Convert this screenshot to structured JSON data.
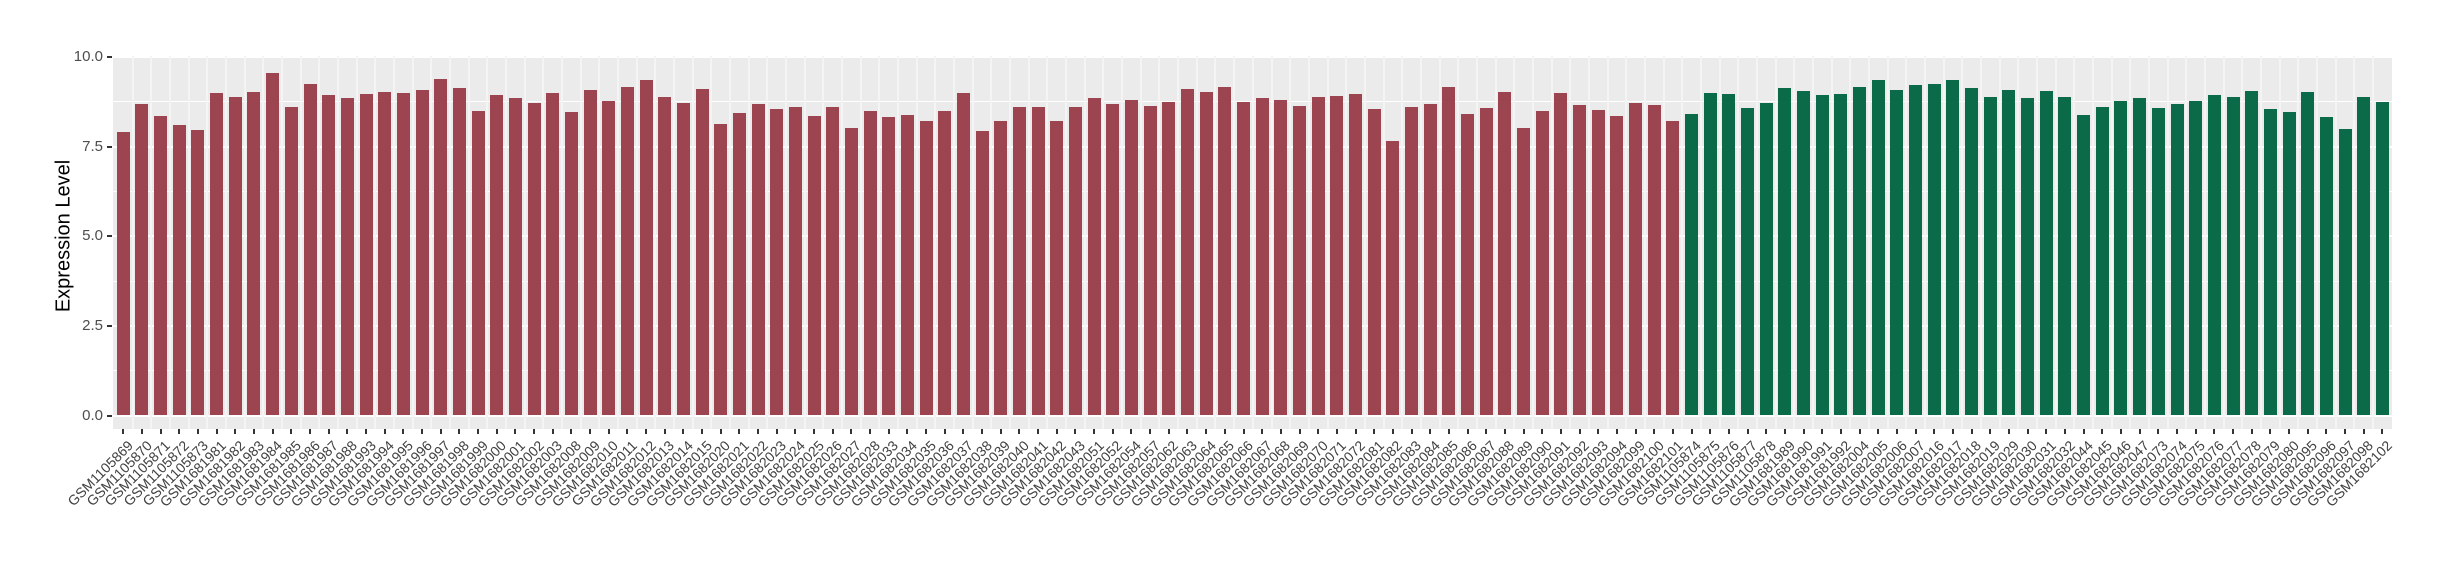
{
  "chart_data": {
    "type": "bar",
    "title": "",
    "xlabel": "",
    "ylabel": "Expression Level",
    "ylim": [
      0,
      10
    ],
    "grid": true,
    "legend": "none",
    "panel_background": "#EBEBEB",
    "gridline_color": "#FFFFFF",
    "y_ticks": [
      {
        "value": 0,
        "label": "0.0"
      },
      {
        "value": 2.5,
        "label": "2.5"
      },
      {
        "value": 5,
        "label": "5.0"
      },
      {
        "value": 7.5,
        "label": "7.5"
      },
      {
        "value": 10,
        "label": "10.0"
      }
    ],
    "series": [
      {
        "name": "group-1-maroon",
        "color": "#9C4450",
        "samples": [
          {
            "label": "GSM1105869",
            "value": 7.92
          },
          {
            "label": "GSM1105870",
            "value": 8.69
          },
          {
            "label": "GSM1105871",
            "value": 8.36
          },
          {
            "label": "GSM1105872",
            "value": 8.11
          },
          {
            "label": "GSM1105873",
            "value": 7.97
          },
          {
            "label": "GSM1681981",
            "value": 8.99
          },
          {
            "label": "GSM1681982",
            "value": 8.89
          },
          {
            "label": "GSM1681983",
            "value": 9.04
          },
          {
            "label": "GSM1681984",
            "value": 9.55
          },
          {
            "label": "GSM1681985",
            "value": 8.6
          },
          {
            "label": "GSM1681986",
            "value": 9.24
          },
          {
            "label": "GSM1681987",
            "value": 8.95
          },
          {
            "label": "GSM1681988",
            "value": 8.85
          },
          {
            "label": "GSM1681993",
            "value": 8.98
          },
          {
            "label": "GSM1681994",
            "value": 9.04
          },
          {
            "label": "GSM1681995",
            "value": 9.01
          },
          {
            "label": "GSM1681996",
            "value": 9.08
          },
          {
            "label": "GSM1681997",
            "value": 9.38
          },
          {
            "label": "GSM1681998",
            "value": 9.15
          },
          {
            "label": "GSM1681999",
            "value": 8.5
          },
          {
            "label": "GSM1682000",
            "value": 8.94
          },
          {
            "label": "GSM1682001",
            "value": 8.85
          },
          {
            "label": "GSM1682002",
            "value": 8.71
          },
          {
            "label": "GSM1682003",
            "value": 9.01
          },
          {
            "label": "GSM1682008",
            "value": 8.48
          },
          {
            "label": "GSM1682009",
            "value": 9.08
          },
          {
            "label": "GSM1682010",
            "value": 8.79
          },
          {
            "label": "GSM1682011",
            "value": 9.16
          },
          {
            "label": "GSM1682012",
            "value": 9.36
          },
          {
            "label": "GSM1682013",
            "value": 8.9
          },
          {
            "label": "GSM1682014",
            "value": 8.71
          },
          {
            "label": "GSM1682015",
            "value": 9.11
          },
          {
            "label": "GSM1682020",
            "value": 8.13
          },
          {
            "label": "GSM1682021",
            "value": 8.45
          },
          {
            "label": "GSM1682022",
            "value": 8.69
          },
          {
            "label": "GSM1682023",
            "value": 8.55
          },
          {
            "label": "GSM1682024",
            "value": 8.62
          },
          {
            "label": "GSM1682025",
            "value": 8.36
          },
          {
            "label": "GSM1682026",
            "value": 8.6
          },
          {
            "label": "GSM1682027",
            "value": 8.03
          },
          {
            "label": "GSM1682028",
            "value": 8.5
          },
          {
            "label": "GSM1682033",
            "value": 8.32
          },
          {
            "label": "GSM1682034",
            "value": 8.39
          },
          {
            "label": "GSM1682035",
            "value": 8.22
          },
          {
            "label": "GSM1682036",
            "value": 8.51
          },
          {
            "label": "GSM1682037",
            "value": 9.01
          },
          {
            "label": "GSM1682038",
            "value": 7.95
          },
          {
            "label": "GSM1682039",
            "value": 8.23
          },
          {
            "label": "GSM1682040",
            "value": 8.61
          },
          {
            "label": "GSM1682041",
            "value": 8.6
          },
          {
            "label": "GSM1682042",
            "value": 8.22
          },
          {
            "label": "GSM1682043",
            "value": 8.61
          },
          {
            "label": "GSM1682051",
            "value": 8.86
          },
          {
            "label": "GSM1682052",
            "value": 8.7
          },
          {
            "label": "GSM1682054",
            "value": 8.81
          },
          {
            "label": "GSM1682057",
            "value": 8.63
          },
          {
            "label": "GSM1682062",
            "value": 8.74
          },
          {
            "label": "GSM1682063",
            "value": 9.11
          },
          {
            "label": "GSM1682064",
            "value": 9.04
          },
          {
            "label": "GSM1682065",
            "value": 9.16
          },
          {
            "label": "GSM1682066",
            "value": 8.76
          },
          {
            "label": "GSM1682067",
            "value": 8.85
          },
          {
            "label": "GSM1682068",
            "value": 8.81
          },
          {
            "label": "GSM1682069",
            "value": 8.65
          },
          {
            "label": "GSM1682070",
            "value": 8.88
          },
          {
            "label": "GSM1682071",
            "value": 8.92
          },
          {
            "label": "GSM1682072",
            "value": 8.97
          },
          {
            "label": "GSM1682081",
            "value": 8.55
          },
          {
            "label": "GSM1682082",
            "value": 7.66
          },
          {
            "label": "GSM1682083",
            "value": 8.62
          },
          {
            "label": "GSM1682084",
            "value": 8.7
          },
          {
            "label": "GSM1682085",
            "value": 9.18
          },
          {
            "label": "GSM1682086",
            "value": 8.41
          },
          {
            "label": "GSM1682087",
            "value": 8.57
          },
          {
            "label": "GSM1682088",
            "value": 9.02
          },
          {
            "label": "GSM1682089",
            "value": 8.03
          },
          {
            "label": "GSM1682090",
            "value": 8.49
          },
          {
            "label": "GSM1682091",
            "value": 8.99
          },
          {
            "label": "GSM1682092",
            "value": 8.67
          },
          {
            "label": "GSM1682093",
            "value": 8.54
          },
          {
            "label": "GSM1682094",
            "value": 8.36
          },
          {
            "label": "GSM1682099",
            "value": 8.73
          },
          {
            "label": "GSM1682100",
            "value": 8.67
          },
          {
            "label": "GSM1682101",
            "value": 8.23
          }
        ]
      },
      {
        "name": "group-2-green",
        "color": "#0B6A48",
        "samples": [
          {
            "label": "GSM1105874",
            "value": 8.41
          },
          {
            "label": "GSM1105875",
            "value": 9.01
          },
          {
            "label": "GSM1105876",
            "value": 8.97
          },
          {
            "label": "GSM1105877",
            "value": 8.58
          },
          {
            "label": "GSM1105878",
            "value": 8.73
          },
          {
            "label": "GSM1681989",
            "value": 9.14
          },
          {
            "label": "GSM1681990",
            "value": 9.05
          },
          {
            "label": "GSM1681991",
            "value": 8.94
          },
          {
            "label": "GSM1681992",
            "value": 8.97
          },
          {
            "label": "GSM1682004",
            "value": 9.17
          },
          {
            "label": "GSM1682005",
            "value": 9.35
          },
          {
            "label": "GSM1682006",
            "value": 9.08
          },
          {
            "label": "GSM1682007",
            "value": 9.23
          },
          {
            "label": "GSM1682016",
            "value": 9.24
          },
          {
            "label": "GSM1682017",
            "value": 9.36
          },
          {
            "label": "GSM1682018",
            "value": 9.13
          },
          {
            "label": "GSM1682019",
            "value": 8.9
          },
          {
            "label": "GSM1682029",
            "value": 9.08
          },
          {
            "label": "GSM1682030",
            "value": 8.86
          },
          {
            "label": "GSM1682031",
            "value": 9.06
          },
          {
            "label": "GSM1682032",
            "value": 8.9
          },
          {
            "label": "GSM1682044",
            "value": 8.38
          },
          {
            "label": "GSM1682045",
            "value": 8.61
          },
          {
            "label": "GSM1682046",
            "value": 8.78
          },
          {
            "label": "GSM1682047",
            "value": 8.87
          },
          {
            "label": "GSM1682073",
            "value": 8.58
          },
          {
            "label": "GSM1682074",
            "value": 8.68
          },
          {
            "label": "GSM1682075",
            "value": 8.79
          },
          {
            "label": "GSM1682076",
            "value": 8.94
          },
          {
            "label": "GSM1682077",
            "value": 8.88
          },
          {
            "label": "GSM1682078",
            "value": 9.06
          },
          {
            "label": "GSM1682079",
            "value": 8.55
          },
          {
            "label": "GSM1682080",
            "value": 8.48
          },
          {
            "label": "GSM1682095",
            "value": 9.04
          },
          {
            "label": "GSM1682096",
            "value": 8.32
          },
          {
            "label": "GSM1682097",
            "value": 8.0
          },
          {
            "label": "GSM1682098",
            "value": 8.9
          },
          {
            "label": "GSM1682102",
            "value": 8.76
          }
        ]
      }
    ]
  }
}
